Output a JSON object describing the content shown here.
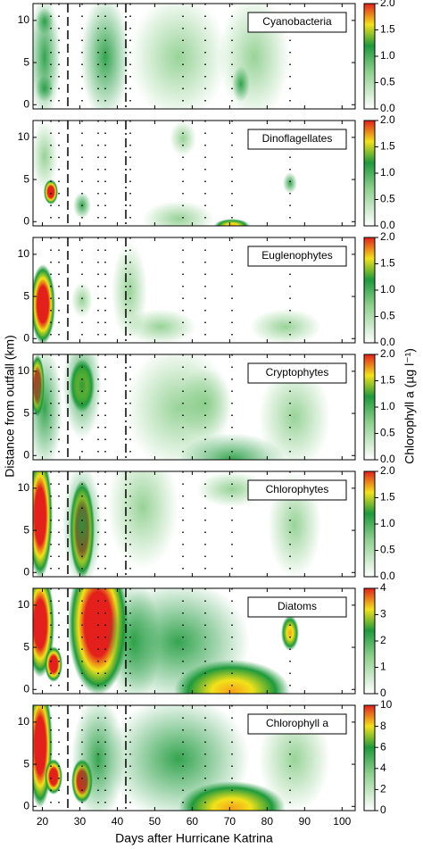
{
  "chart_data": [
    {
      "type": "contour",
      "title": "Cyanobacteria",
      "xlim": [
        17.5,
        103.5
      ],
      "xticks": [
        20,
        30,
        40,
        50,
        60,
        70,
        80,
        90,
        100
      ],
      "ylim": [
        -0.5,
        12
      ],
      "yticks": [
        0,
        5,
        10
      ],
      "colorbar": {
        "lim": [
          0,
          2
        ],
        "ticks": [
          {
            "value": 0,
            "label": "0.0"
          },
          0.5,
          {
            "value": 1,
            "label": "1.0"
          },
          1.5,
          {
            "value": 2,
            "label": "2.0"
          }
        ]
      }
    },
    {
      "type": "contour",
      "title": "Dinoflagellates",
      "xlim": [
        17.5,
        103.5
      ],
      "xticks": [
        20,
        30,
        40,
        50,
        60,
        70,
        80,
        90,
        100
      ],
      "ylim": [
        -0.5,
        12
      ],
      "yticks": [
        0,
        5,
        10
      ],
      "colorbar": {
        "lim": [
          0,
          2
        ],
        "ticks": [
          {
            "value": 0,
            "label": "0.0"
          },
          0.5,
          {
            "value": 1,
            "label": "1.0"
          },
          1.5,
          {
            "value": 2,
            "label": "2.0"
          }
        ]
      }
    },
    {
      "type": "contour",
      "title": "Euglenophytes",
      "xlim": [
        17.5,
        103.5
      ],
      "xticks": [
        20,
        30,
        40,
        50,
        60,
        70,
        80,
        90,
        100
      ],
      "ylim": [
        -0.5,
        12
      ],
      "yticks": [
        0,
        5,
        10
      ],
      "colorbar": {
        "lim": [
          0,
          2
        ],
        "ticks": [
          {
            "value": 0,
            "label": "0.0"
          },
          0.5,
          {
            "value": 1,
            "label": "1.0"
          },
          1.5,
          {
            "value": 2,
            "label": "2.0"
          }
        ]
      }
    },
    {
      "type": "contour",
      "title": "Cryptophytes",
      "ylabel": "Distance from outfall (km)",
      "colorbar_label": "Chlorophyll a (µg l⁻¹)",
      "xlim": [
        17.5,
        103.5
      ],
      "xticks": [
        20,
        30,
        40,
        50,
        60,
        70,
        80,
        90,
        100
      ],
      "ylim": [
        -0.5,
        12
      ],
      "yticks": [
        0,
        5,
        10
      ],
      "colorbar": {
        "lim": [
          0,
          2
        ],
        "ticks": [
          {
            "value": 0,
            "label": "0.0"
          },
          0.5,
          {
            "value": 1,
            "label": "1.0"
          },
          1.5,
          {
            "value": 2,
            "label": "2.0"
          }
        ]
      }
    },
    {
      "type": "contour",
      "title": "Chlorophytes",
      "xlim": [
        17.5,
        103.5
      ],
      "xticks": [
        20,
        30,
        40,
        50,
        60,
        70,
        80,
        90,
        100
      ],
      "ylim": [
        -0.5,
        12
      ],
      "yticks": [
        0,
        5,
        10
      ],
      "colorbar": {
        "lim": [
          0,
          2
        ],
        "ticks": [
          {
            "value": 0,
            "label": "0.0"
          },
          0.5,
          {
            "value": 1,
            "label": "1.0"
          },
          1.5,
          {
            "value": 2,
            "label": "2.0"
          }
        ]
      }
    },
    {
      "type": "contour",
      "title": "Diatoms",
      "xlim": [
        17.5,
        103.5
      ],
      "xticks": [
        20,
        30,
        40,
        50,
        60,
        70,
        80,
        90,
        100
      ],
      "ylim": [
        -0.5,
        12
      ],
      "yticks": [
        0,
        5,
        10
      ],
      "colorbar": {
        "lim": [
          0,
          4
        ],
        "ticks": [
          0,
          1,
          2,
          3,
          4
        ]
      }
    },
    {
      "type": "contour",
      "title": "Chlorophyll  a",
      "xlabel": "Days after Hurricane Katrina",
      "xlim": [
        17.5,
        103.5
      ],
      "xticks": [
        20,
        30,
        40,
        50,
        60,
        70,
        80,
        90,
        100
      ],
      "ylim": [
        -0.5,
        12
      ],
      "yticks": [
        0,
        5,
        10
      ],
      "colorbar": {
        "lim": [
          0,
          10
        ],
        "ticks": [
          0,
          2,
          4,
          6,
          8,
          10
        ]
      }
    }
  ]
}
